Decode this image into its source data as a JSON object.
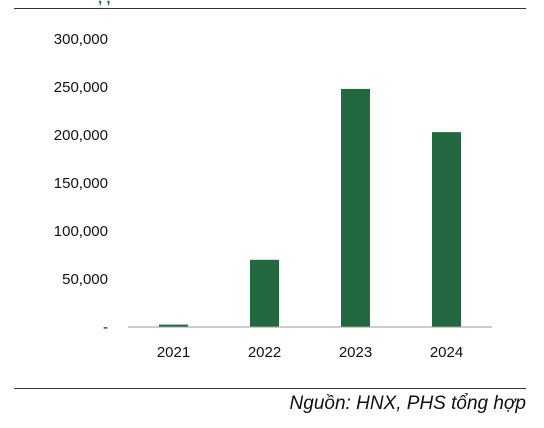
{
  "header": {
    "title_fragment": ", ,"
  },
  "footer": {
    "source": "Nguồn: HNX, PHS tổng hợp"
  },
  "colors": {
    "bar": "#246840",
    "axis": "#999999"
  },
  "chart_data": {
    "type": "bar",
    "categories": [
      "2021",
      "2022",
      "2023",
      "2024"
    ],
    "values": [
      2500,
      70000,
      248000,
      203000
    ],
    "ylim": [
      0,
      300000
    ],
    "yticks": [
      0,
      50000,
      100000,
      150000,
      200000,
      250000,
      300000
    ],
    "ytick_labels": [
      "-",
      "50,000",
      "100,000",
      "150,000",
      "200,000",
      "250,000",
      "300,000"
    ],
    "grid": false,
    "legend": "none"
  }
}
